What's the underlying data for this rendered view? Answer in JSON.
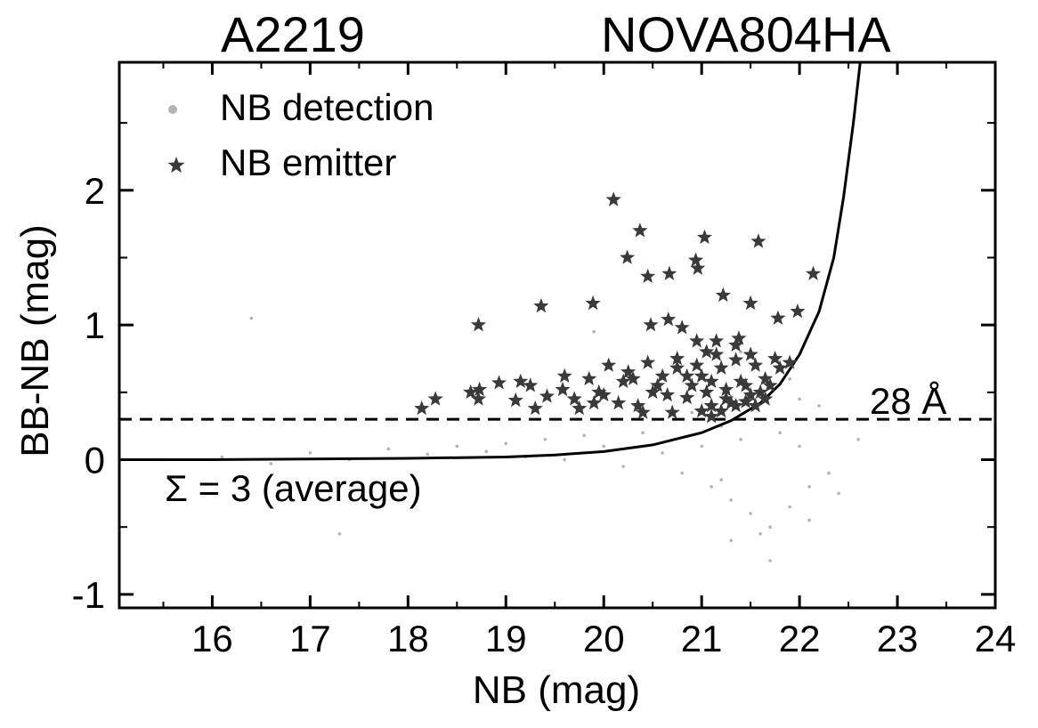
{
  "chart_data": {
    "type": "scatter",
    "title_left": "A2219",
    "title_right": "NOVA804HA",
    "xlabel": "NB (mag)",
    "ylabel": "BB-NB (mag)",
    "xlim": [
      15.05,
      24.0
    ],
    "ylim": [
      -1.1,
      2.95
    ],
    "x_ticks": [
      16,
      17,
      18,
      19,
      20,
      21,
      22,
      23,
      24
    ],
    "y_ticks": [
      -1,
      0,
      1,
      2
    ],
    "x_tick_labels": [
      "16",
      "17",
      "18",
      "19",
      "20",
      "21",
      "22",
      "23",
      "24"
    ],
    "y_tick_labels": [
      "-1",
      "0",
      "1",
      "2"
    ],
    "grid": false,
    "legend": {
      "position": "top-left",
      "entries": [
        {
          "label": "NB detection",
          "marker": "dot",
          "color": "#b3b3b3"
        },
        {
          "label": "NB emitter",
          "marker": "star",
          "color": "#3a3a3a"
        }
      ]
    },
    "annotations": {
      "threshold_label": "28 Å",
      "sigma_label": "Σ = 3 (average)"
    },
    "threshold_line": {
      "y": 0.3,
      "style": "dashed"
    },
    "sigma_curve": {
      "x": [
        15.05,
        16.0,
        17.0,
        18.0,
        19.0,
        19.5,
        20.0,
        20.5,
        21.0,
        21.3,
        21.6,
        21.8,
        22.0,
        22.2,
        22.35,
        22.45,
        22.55,
        22.62
      ],
      "y": [
        0.0,
        0.0,
        0.005,
        0.01,
        0.02,
        0.035,
        0.06,
        0.11,
        0.2,
        0.29,
        0.42,
        0.56,
        0.78,
        1.1,
        1.5,
        1.95,
        2.5,
        2.95
      ]
    },
    "series": [
      {
        "name": "NB detection",
        "marker": "dot",
        "color": "#b3b3b3",
        "x": [
          15.5,
          16.1,
          16.6,
          17.0,
          17.4,
          17.8,
          18.2,
          18.5,
          18.8,
          19.0,
          19.2,
          19.4,
          19.6,
          19.8,
          20.0,
          20.2,
          20.4,
          20.6,
          20.8,
          21.0,
          21.1,
          21.2,
          21.3,
          21.4,
          21.5,
          21.6,
          21.7,
          21.8,
          21.9,
          22.0,
          22.1,
          22.2,
          22.3,
          21.3,
          21.5,
          21.7,
          21.9,
          22.1,
          20.9,
          21.2,
          21.6,
          22.0,
          21.8,
          21.4,
          22.4,
          22.6,
          23.1,
          17.3,
          16.4,
          19.9
        ],
        "y": [
          0.0,
          0.02,
          -0.03,
          0.05,
          0.0,
          0.08,
          0.04,
          0.1,
          0.06,
          0.12,
          0.02,
          0.15,
          0.0,
          0.18,
          0.1,
          -0.05,
          0.2,
          0.05,
          -0.1,
          0.1,
          -0.2,
          0.25,
          -0.3,
          0.15,
          -0.4,
          0.3,
          -0.5,
          0.2,
          -0.35,
          0.1,
          -0.2,
          0.4,
          -0.1,
          -0.6,
          0.5,
          -0.75,
          0.6,
          -0.45,
          0.35,
          -0.15,
          -0.55,
          0.45,
          0.7,
          0.8,
          -0.25,
          0.15,
          0.35,
          -0.55,
          1.05,
          0.95
        ]
      },
      {
        "name": "NB emitter",
        "marker": "star",
        "color": "#3a3a3a",
        "x": [
          20.1,
          20.37,
          20.24,
          20.45,
          20.67,
          21.03,
          20.94,
          20.96,
          21.58,
          21.22,
          21.5,
          19.36,
          19.89,
          18.72,
          22.14,
          21.98,
          20.66,
          20.48,
          21.78,
          21.38,
          20.8,
          18.14,
          18.28,
          18.64,
          18.73,
          18.93,
          19.1,
          19.25,
          19.42,
          19.58,
          19.7,
          19.85,
          19.95,
          20.05,
          20.15,
          20.25,
          20.35,
          20.45,
          20.55,
          20.65,
          20.75,
          20.85,
          20.95,
          21.05,
          21.15,
          21.25,
          21.35,
          21.45,
          21.55,
          21.65,
          21.75,
          21.8,
          21.2,
          21.0,
          20.9,
          21.1,
          21.3,
          21.4,
          21.5,
          21.6,
          21.7,
          21.1,
          20.7,
          20.6,
          20.4,
          20.3,
          21.0,
          21.2,
          21.35,
          21.45,
          21.55,
          21.65,
          21.1,
          20.95,
          20.85,
          20.5,
          20.2,
          19.9,
          19.6,
          19.3,
          21.25,
          21.05,
          20.75,
          21.5,
          21.15,
          21.35,
          20.0,
          19.75,
          19.15,
          18.72,
          21.9
        ],
        "y": [
          1.93,
          1.7,
          1.5,
          1.36,
          1.38,
          1.65,
          1.48,
          1.42,
          1.62,
          1.22,
          1.16,
          1.14,
          1.16,
          1.0,
          1.38,
          1.1,
          1.04,
          1.0,
          1.05,
          0.9,
          0.98,
          0.38,
          0.45,
          0.5,
          0.52,
          0.57,
          0.44,
          0.55,
          0.47,
          0.52,
          0.45,
          0.6,
          0.5,
          0.7,
          0.42,
          0.65,
          0.4,
          0.72,
          0.55,
          0.48,
          0.75,
          0.62,
          0.88,
          0.5,
          0.78,
          0.45,
          0.85,
          0.55,
          0.7,
          0.6,
          0.75,
          0.68,
          0.68,
          0.62,
          0.55,
          0.4,
          0.42,
          0.58,
          0.48,
          0.5,
          0.55,
          0.32,
          0.35,
          0.62,
          0.35,
          0.6,
          0.36,
          0.36,
          0.4,
          0.43,
          0.4,
          0.45,
          0.58,
          0.7,
          0.46,
          0.5,
          0.58,
          0.42,
          0.62,
          0.38,
          0.52,
          0.8,
          0.68,
          0.78,
          0.88,
          0.74,
          0.48,
          0.38,
          0.58,
          0.45,
          0.72
        ]
      }
    ]
  }
}
